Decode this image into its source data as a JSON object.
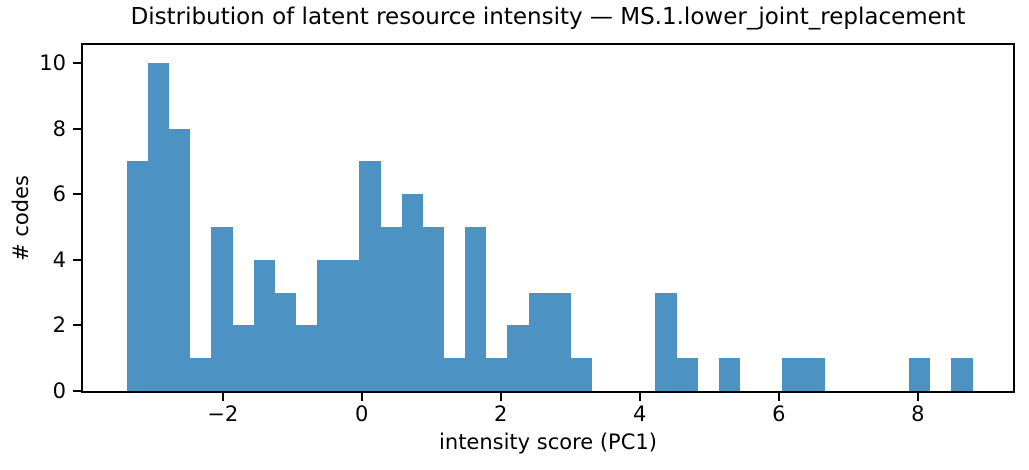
{
  "chart_data": {
    "type": "bar",
    "subtype": "histogram",
    "title": "Distribution of latent resource intensity — MS.1.lower_joint_replacement",
    "xlabel": "intensity score (PC1)",
    "ylabel": "# codes",
    "bin_start": -3.38,
    "bin_width": 0.3042,
    "counts": [
      7,
      10,
      8,
      1,
      5,
      2,
      4,
      3,
      2,
      4,
      4,
      7,
      5,
      6,
      5,
      1,
      5,
      1,
      2,
      3,
      3,
      1,
      0,
      0,
      0,
      3,
      1,
      0,
      1,
      0,
      0,
      1,
      1,
      0,
      0,
      0,
      0,
      1,
      0,
      1
    ],
    "xlim": [
      -4.01,
      9.37
    ],
    "ylim": [
      0,
      10.55
    ],
    "xticks": [
      {
        "value": -2,
        "label": "−2"
      },
      {
        "value": 0,
        "label": "0"
      },
      {
        "value": 2,
        "label": "2"
      },
      {
        "value": 4,
        "label": "4"
      },
      {
        "value": 6,
        "label": "6"
      },
      {
        "value": 8,
        "label": "8"
      }
    ],
    "yticks": [
      {
        "value": 0,
        "label": "0"
      },
      {
        "value": 2,
        "label": "2"
      },
      {
        "value": 4,
        "label": "4"
      },
      {
        "value": 6,
        "label": "6"
      },
      {
        "value": 8,
        "label": "8"
      },
      {
        "value": 10,
        "label": "10"
      }
    ],
    "bar_color": "#4c93c4",
    "axis_color": "#000000",
    "grid": false,
    "legend": null
  }
}
